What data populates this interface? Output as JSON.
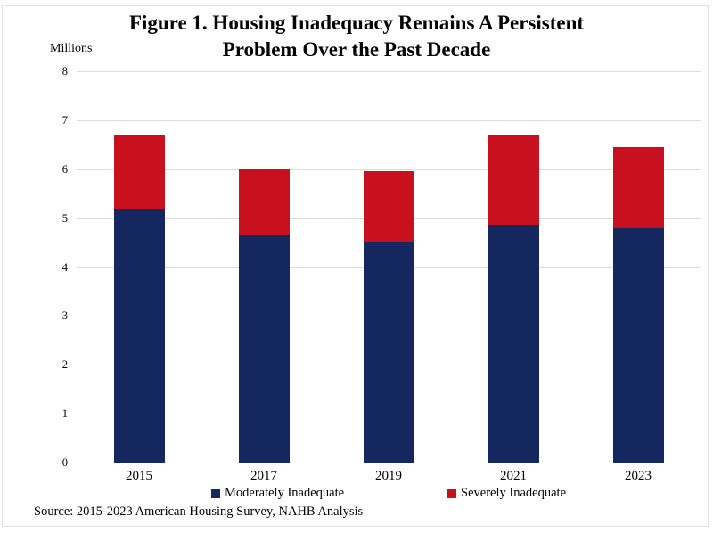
{
  "figure": {
    "title_line1": "Figure 1. Housing Inadequacy Remains A Persistent",
    "title_line2": "Problem Over the Past Decade",
    "axis_unit_label": "Millions",
    "source": "Source: 2015-2023 American Housing Survey, NAHB Analysis"
  },
  "colors": {
    "moderately_inadequate": "#14275E",
    "severely_inadequate": "#C8101E",
    "gridline": "#DCDCDC",
    "zero_axis": "#C4C4C4",
    "frame_border": "#E2E2E2"
  },
  "chart_data": {
    "type": "bar",
    "stacked": true,
    "title": "Figure 1. Housing Inadequacy Remains A Persistent Problem Over the Past Decade",
    "xlabel": "",
    "ylabel": "Millions",
    "ylim": [
      0,
      8
    ],
    "yticks": [
      0,
      1,
      2,
      3,
      4,
      5,
      6,
      7,
      8
    ],
    "grid": true,
    "legend_position": "bottom",
    "categories": [
      "2015",
      "2017",
      "2019",
      "2021",
      "2023"
    ],
    "series": [
      {
        "name": "Moderately Inadequate",
        "color": "#14275E",
        "values": [
          5.17,
          4.65,
          4.5,
          4.84,
          4.8
        ]
      },
      {
        "name": "Severely Inadequate",
        "color": "#C8101E",
        "values": [
          1.51,
          1.35,
          1.46,
          1.85,
          1.65
        ]
      }
    ],
    "stack_totals": [
      6.68,
      6.0,
      5.96,
      6.69,
      6.45
    ]
  }
}
